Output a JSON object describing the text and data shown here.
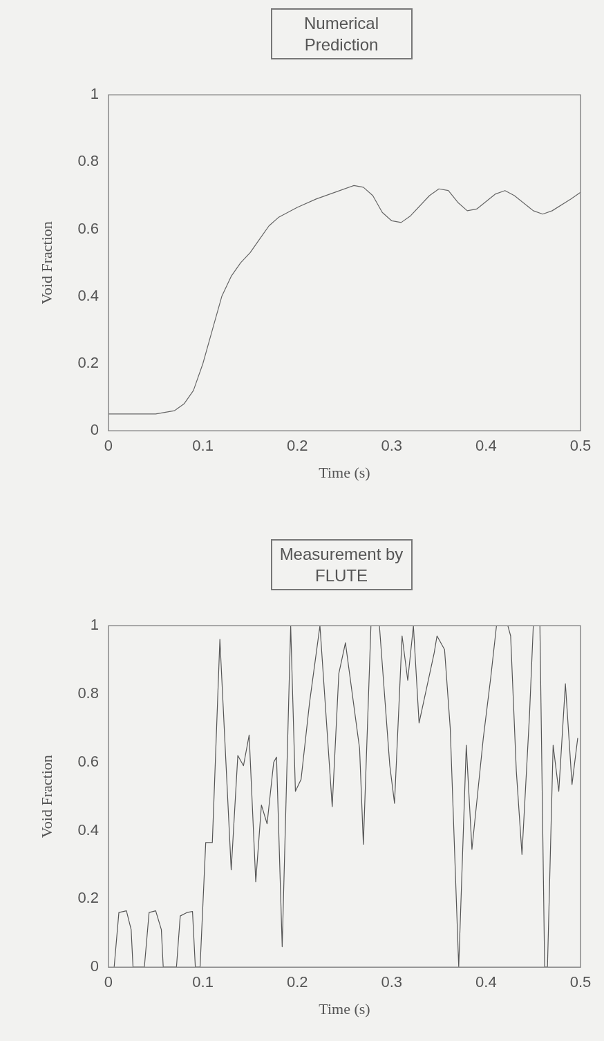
{
  "chart_data": [
    {
      "type": "line",
      "title": "Numerical Prediction",
      "xlabel": "Time (s)",
      "ylabel": "Void Fraction",
      "series": [
        {
          "color": "#666666",
          "x": [
            0,
            0.05,
            0.07,
            0.08,
            0.09,
            0.1,
            0.11,
            0.12,
            0.13,
            0.14,
            0.15,
            0.16,
            0.17,
            0.18,
            0.2,
            0.22,
            0.24,
            0.26,
            0.27,
            0.28,
            0.29,
            0.3,
            0.31,
            0.32,
            0.34,
            0.35,
            0.36,
            0.37,
            0.38,
            0.39,
            0.41,
            0.42,
            0.43,
            0.45,
            0.46,
            0.47,
            0.49,
            0.5
          ],
          "values": [
            0.05,
            0.05,
            0.06,
            0.08,
            0.12,
            0.2,
            0.3,
            0.4,
            0.46,
            0.5,
            0.53,
            0.57,
            0.61,
            0.635,
            0.665,
            0.69,
            0.71,
            0.73,
            0.725,
            0.7,
            0.65,
            0.625,
            0.62,
            0.64,
            0.7,
            0.72,
            0.715,
            0.68,
            0.655,
            0.66,
            0.705,
            0.715,
            0.7,
            0.655,
            0.645,
            0.655,
            0.69,
            0.71
          ]
        }
      ],
      "xlim": [
        0,
        0.5
      ],
      "xticks": [
        0,
        0.1,
        0.2,
        0.3,
        0.4,
        0.5
      ],
      "ylim": [
        0,
        1
      ],
      "yticks": [
        0,
        0.2,
        0.4,
        0.6,
        0.8,
        1
      ],
      "grid": false,
      "legend": false,
      "marker": "none",
      "line_style": "solid"
    },
    {
      "type": "line",
      "title": "Measurement by FLUTE",
      "xlabel": "Time (s)",
      "ylabel": "Void Fraction",
      "series": [
        {
          "color": "#555555",
          "x": [
            0.006,
            0.011,
            0.019,
            0.024,
            0.026,
            0.038,
            0.043,
            0.05,
            0.056,
            0.058,
            0.072,
            0.076,
            0.083,
            0.089,
            0.092,
            0.097,
            0.103,
            0.11,
            0.118,
            0.13,
            0.137,
            0.143,
            0.149,
            0.156,
            0.162,
            0.168,
            0.175,
            0.178,
            0.184,
            0.193,
            0.198,
            0.204,
            0.213,
            0.224,
            0.237,
            0.244,
            0.251,
            0.266,
            0.27,
            0.278,
            0.287,
            0.298,
            0.303,
            0.311,
            0.317,
            0.323,
            0.329,
            0.345,
            0.348,
            0.356,
            0.362,
            0.371,
            0.379,
            0.385,
            0.397,
            0.405,
            0.411,
            0.423,
            0.426,
            0.432,
            0.438,
            0.446,
            0.45,
            0.457,
            0.462,
            0.465,
            0.471,
            0.477,
            0.484,
            0.491,
            0.497
          ],
          "values": [
            0,
            0.16,
            0.165,
            0.11,
            0,
            0,
            0.16,
            0.165,
            0.11,
            0,
            0,
            0.15,
            0.16,
            0.163,
            0,
            0,
            0.365,
            0.365,
            0.96,
            0.285,
            0.62,
            0.59,
            0.68,
            0.25,
            0.475,
            0.42,
            0.6,
            0.615,
            0.06,
            1,
            0.515,
            0.55,
            0.775,
            1,
            0.47,
            0.86,
            0.95,
            0.64,
            0.36,
            1,
            1,
            0.59,
            0.48,
            0.97,
            0.84,
            1,
            0.715,
            0.92,
            0.97,
            0.93,
            0.7,
            0,
            0.65,
            0.345,
            0.67,
            0.85,
            1,
            1,
            0.97,
            0.575,
            0.33,
            0.74,
            1,
            1,
            0,
            0,
            0.65,
            0.515,
            0.83,
            0.535,
            0.67
          ]
        }
      ],
      "xlim": [
        0,
        0.5
      ],
      "xticks": [
        0,
        0.1,
        0.2,
        0.3,
        0.4,
        0.5
      ],
      "ylim": [
        0,
        1
      ],
      "yticks": [
        0,
        0.2,
        0.4,
        0.6,
        0.8,
        1
      ],
      "grid": false,
      "legend": false,
      "marker": "none",
      "line_style": "solid"
    }
  ]
}
